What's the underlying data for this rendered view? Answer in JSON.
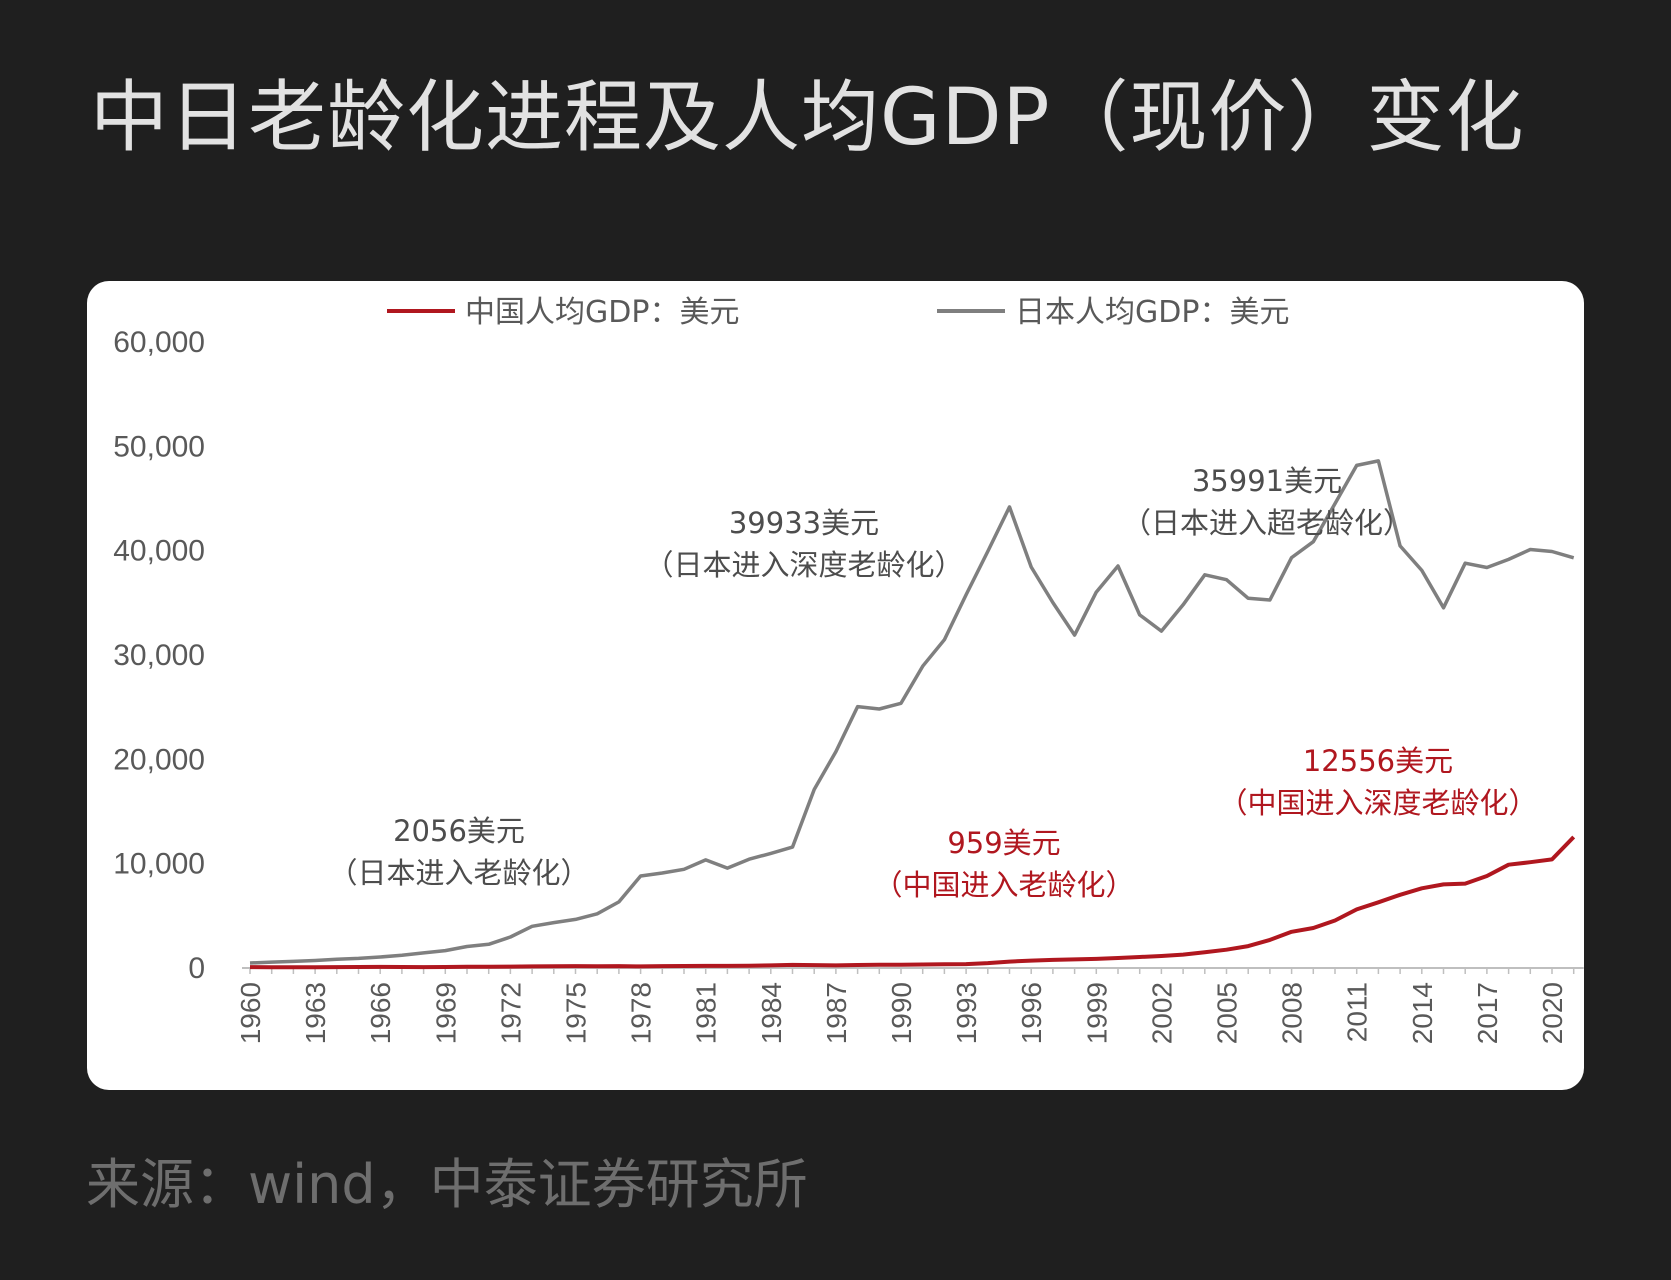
{
  "header": {
    "title": "中日老龄化进程及人均GDP（现价）变化"
  },
  "footer": {
    "source": "来源：wind，中泰证券研究所"
  },
  "colors": {
    "china": "#b0171f",
    "japan": "#7f7f7f",
    "background": "#1f1f1f",
    "card": "#ffffff"
  },
  "chart_data": {
    "type": "line",
    "legend_position": "top-center",
    "grid": false,
    "ylim": [
      0,
      60000
    ],
    "yticks": [
      "0",
      "10,000",
      "20,000",
      "30,000",
      "40,000",
      "50,000",
      "60,000"
    ],
    "xticks": [
      "1960",
      "1963",
      "1966",
      "1969",
      "1972",
      "1975",
      "1978",
      "1981",
      "1984",
      "1987",
      "1990",
      "1993",
      "1996",
      "1999",
      "2002",
      "2005",
      "2008",
      "2011",
      "2014",
      "2017",
      "2020"
    ],
    "x": [
      1960,
      1961,
      1962,
      1963,
      1964,
      1965,
      1966,
      1967,
      1968,
      1969,
      1970,
      1971,
      1972,
      1973,
      1974,
      1975,
      1976,
      1977,
      1978,
      1979,
      1980,
      1981,
      1982,
      1983,
      1984,
      1985,
      1986,
      1987,
      1988,
      1989,
      1990,
      1991,
      1992,
      1993,
      1994,
      1995,
      1996,
      1997,
      1998,
      1999,
      2000,
      2001,
      2002,
      2003,
      2004,
      2005,
      2006,
      2007,
      2008,
      2009,
      2010,
      2011,
      2012,
      2013,
      2014,
      2015,
      2016,
      2017,
      2018,
      2019,
      2020,
      2021
    ],
    "series": [
      {
        "name": "中国人均GDP：美元",
        "color": "#b0171f",
        "values": [
          90,
          76,
          70,
          74,
          85,
          98,
          104,
          97,
          91,
          100,
          113,
          119,
          132,
          157,
          160,
          178,
          165,
          185,
          156,
          184,
          195,
          197,
          203,
          225,
          250,
          294,
          282,
          252,
          284,
          311,
          318,
          333,
          366,
          377,
          473,
          610,
          709,
          781,
          828,
          873,
          959,
          1053,
          1149,
          1289,
          1509,
          1753,
          2099,
          2694,
          3468,
          3832,
          4550,
          5614,
          6301,
          7020,
          7636,
          8016,
          8094,
          8817,
          9905,
          10144,
          10409,
          12556
        ]
      },
      {
        "name": "日本人均GDP：美元",
        "color": "#7f7f7f",
        "values": [
          479,
          564,
          633,
          718,
          835,
          919,
          1058,
          1228,
          1450,
          1669,
          2056,
          2272,
          2967,
          3997,
          4354,
          4659,
          5198,
          6335,
          8821,
          9105,
          9463,
          10361,
          9578,
          10425,
          10984,
          11585,
          17112,
          20745,
          25052,
          24823,
          25371,
          28925,
          31465,
          35766,
          39933,
          44198,
          38437,
          35022,
          31903,
          36027,
          38532,
          33846,
          32289,
          34808,
          37689,
          37218,
          35434,
          35275,
          39339,
          40855,
          44508,
          48168,
          48603,
          40454,
          38109,
          34524,
          38794,
          38387,
          39159,
          40113,
          39918,
          39313
        ]
      }
    ],
    "annotations": [
      {
        "series": "japan",
        "lines": [
          "2056美元",
          "（日本进入老龄化）"
        ]
      },
      {
        "series": "japan",
        "lines": [
          "39933美元",
          "（日本进入深度老龄化）"
        ]
      },
      {
        "series": "japan",
        "lines": [
          "35991美元",
          "（日本进入超老龄化）"
        ]
      },
      {
        "series": "china",
        "lines": [
          "959美元",
          "（中国进入老龄化）"
        ]
      },
      {
        "series": "china",
        "lines": [
          "12556美元",
          "（中国进入深度老龄化）"
        ]
      }
    ]
  }
}
